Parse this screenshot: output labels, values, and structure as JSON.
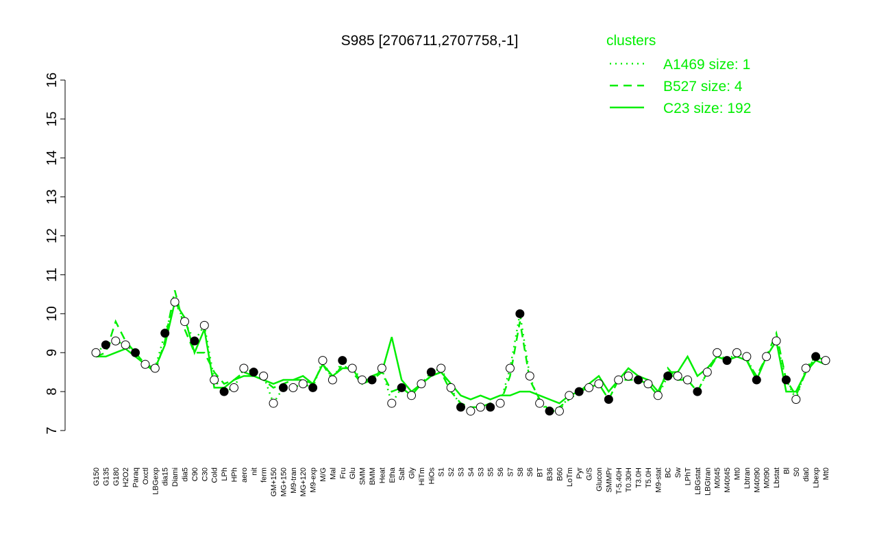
{
  "chart_data": {
    "type": "line",
    "title": "S985 [2706711,2707758,-1]",
    "legend_title": "clusters",
    "legend_position": "top-right",
    "ylim": [
      7,
      16
    ],
    "yticks": [
      7,
      8,
      9,
      10,
      11,
      12,
      13,
      14,
      15,
      16
    ],
    "categories": [
      "G150",
      "G135",
      "G180",
      "H2O2",
      "Paraq",
      "Oxctl",
      "LBGexp",
      "dia15",
      "Diami",
      "dia5",
      "C90",
      "C30",
      "Cold",
      "LPh",
      "HPh",
      "aero",
      "nit",
      "ferm",
      "GM+150",
      "MG+150",
      "M9-tran",
      "MG+120",
      "M9-exp",
      "M/G",
      "Mal",
      "Fru",
      "Glu",
      "SMM",
      "BMM",
      "Heat",
      "Etha",
      "Salt",
      "Gly",
      "HiTm",
      "HiOs",
      "S1",
      "S2",
      "S3",
      "S4",
      "S3",
      "S5",
      "S6",
      "S7",
      "S8",
      "S6",
      "BT",
      "B36",
      "B60",
      "LoTm",
      "Pyr",
      "G/S",
      "Glucon",
      "SMMPr",
      "T-5.40H",
      "T0.30H",
      "T3.0H",
      "T5.0H",
      "M9-stat",
      "BC",
      "Sw",
      "LPhT",
      "LBGstat",
      "LBGtran",
      "M0t45",
      "M40t45",
      "Mt0",
      "Lbtran",
      "M40t90",
      "M0t90",
      "Lbstat",
      "Bl",
      "S0",
      "dia0",
      "Lbexp",
      "Mt0"
    ],
    "values": [
      9.0,
      9.2,
      9.3,
      9.2,
      9.0,
      8.7,
      8.6,
      9.5,
      10.3,
      9.8,
      9.3,
      9.7,
      8.3,
      8.0,
      8.1,
      8.6,
      8.5,
      8.4,
      7.7,
      8.1,
      8.1,
      8.2,
      8.1,
      8.8,
      8.3,
      8.8,
      8.6,
      8.3,
      8.3,
      8.6,
      7.7,
      8.1,
      7.9,
      8.2,
      8.5,
      8.6,
      8.1,
      7.6,
      7.5,
      7.6,
      7.6,
      7.7,
      8.6,
      10.0,
      8.4,
      7.7,
      7.5,
      7.5,
      7.9,
      8.0,
      8.1,
      8.2,
      7.8,
      8.3,
      8.4,
      8.3,
      8.2,
      7.9,
      8.4,
      8.4,
      8.3,
      8.0,
      8.5,
      9.0,
      8.8,
      9.0,
      8.9,
      8.3,
      8.9,
      9.3,
      8.3,
      7.8,
      8.6,
      8.9,
      8.8
    ],
    "series": [
      {
        "name": "A1469 size: 1",
        "color": "#00ee00",
        "style": "dotted",
        "values": [
          9.0,
          9.2,
          9.3,
          9.2,
          9.0,
          8.7,
          8.6,
          9.5,
          10.3,
          9.8,
          9.3,
          9.7,
          8.3,
          8.0,
          8.1,
          8.6,
          8.5,
          8.4,
          7.7,
          8.1,
          8.1,
          8.2,
          8.1,
          8.8,
          8.3,
          8.8,
          8.6,
          8.3,
          8.3,
          8.6,
          7.7,
          8.1,
          7.9,
          8.2,
          8.5,
          8.6,
          8.1,
          7.6,
          7.5,
          7.6,
          7.6,
          7.7,
          8.6,
          10.0,
          8.4,
          7.7,
          7.5,
          7.5,
          7.9,
          8.0,
          8.1,
          8.2,
          7.8,
          8.3,
          8.4,
          8.3,
          8.2,
          7.9,
          8.4,
          8.4,
          8.3,
          8.0,
          8.5,
          9.0,
          8.8,
          9.0,
          8.9,
          8.3,
          8.9,
          9.3,
          8.3,
          7.8,
          8.6,
          8.9,
          8.8
        ]
      },
      {
        "name": "B527 size: 4",
        "color": "#00ee00",
        "style": "dashed",
        "values": [
          8.9,
          9.0,
          9.8,
          9.3,
          9.0,
          8.7,
          8.5,
          9.3,
          10.6,
          9.6,
          9.0,
          9.0,
          8.5,
          8.2,
          8.3,
          8.5,
          8.4,
          8.3,
          8.1,
          8.2,
          8.3,
          8.3,
          8.2,
          8.7,
          8.3,
          8.7,
          8.5,
          8.2,
          8.3,
          8.5,
          8.0,
          8.1,
          7.9,
          8.2,
          8.4,
          8.5,
          8.0,
          7.7,
          7.6,
          7.6,
          7.7,
          7.7,
          8.4,
          9.8,
          8.3,
          7.8,
          7.5,
          7.6,
          7.8,
          8.0,
          8.1,
          8.2,
          7.8,
          8.3,
          8.3,
          8.3,
          8.2,
          7.9,
          8.6,
          8.3,
          8.3,
          8.0,
          8.5,
          8.9,
          8.8,
          8.9,
          8.8,
          8.4,
          8.9,
          9.5,
          8.3,
          7.9,
          8.5,
          8.9,
          8.8
        ]
      },
      {
        "name": "C23 size: 192",
        "color": "#00ee00",
        "style": "solid",
        "values": [
          8.9,
          8.9,
          9.0,
          9.1,
          8.9,
          8.7,
          8.6,
          9.2,
          10.3,
          9.9,
          9.0,
          9.6,
          8.1,
          8.1,
          8.3,
          8.4,
          8.4,
          8.3,
          8.2,
          8.3,
          8.3,
          8.4,
          8.2,
          8.7,
          8.4,
          8.6,
          8.6,
          8.2,
          8.4,
          8.5,
          9.4,
          8.3,
          8.0,
          8.2,
          8.4,
          8.5,
          8.2,
          7.9,
          7.8,
          7.9,
          7.8,
          7.9,
          7.9,
          8.0,
          8.0,
          7.9,
          7.8,
          7.7,
          7.9,
          8.0,
          8.2,
          8.4,
          8.0,
          8.3,
          8.6,
          8.4,
          8.3,
          8.0,
          8.5,
          8.5,
          8.9,
          8.4,
          8.6,
          8.9,
          8.8,
          8.9,
          8.8,
          8.3,
          8.9,
          9.3,
          8.0,
          8.0,
          8.5,
          8.8,
          8.7
        ]
      }
    ]
  }
}
